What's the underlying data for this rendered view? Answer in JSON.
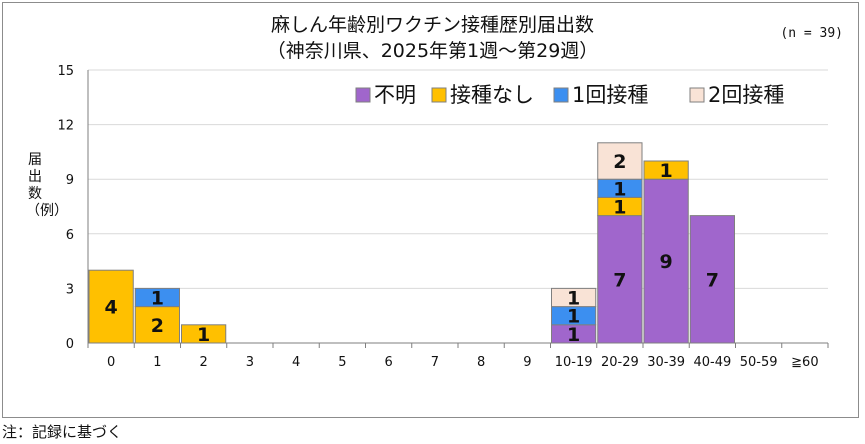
{
  "chart_data": {
    "type": "bar",
    "stacked": true,
    "title": "麻しん年齢別ワクチン接種歴別届出数",
    "subtitle": "（神奈川県、2025年第1週～第29週）",
    "count_label": "(n = 39)",
    "ylabel": "届出数（例）",
    "xlabel": "",
    "ylim": [
      0,
      15
    ],
    "yticks": [
      "0",
      "3",
      "6",
      "9",
      "12",
      "15"
    ],
    "grid": true,
    "legend_position": "top-right",
    "categories": [
      "0",
      "1",
      "2",
      "3",
      "4",
      "5",
      "6",
      "7",
      "8",
      "9",
      "10-19",
      "20-29",
      "30-39",
      "40-49",
      "50-59",
      "≧60"
    ],
    "series": [
      {
        "name": "不明",
        "color": "#a066cc",
        "values": [
          0,
          0,
          0,
          0,
          0,
          0,
          0,
          0,
          0,
          0,
          1,
          7,
          9,
          7,
          0,
          0
        ]
      },
      {
        "name": "接種なし",
        "color": "#ffc000",
        "values": [
          4,
          2,
          1,
          0,
          0,
          0,
          0,
          0,
          0,
          0,
          0,
          1,
          1,
          0,
          0,
          0
        ]
      },
      {
        "name": "1回接種",
        "color": "#3c8ff0",
        "values": [
          0,
          1,
          0,
          0,
          0,
          0,
          0,
          0,
          0,
          0,
          1,
          1,
          0,
          0,
          0,
          0
        ]
      },
      {
        "name": "2回接種",
        "color": "#f9e3d6",
        "values": [
          0,
          0,
          0,
          0,
          0,
          0,
          0,
          0,
          0,
          0,
          1,
          2,
          0,
          0,
          0,
          0
        ]
      }
    ]
  },
  "note": "注：記録に基づく"
}
